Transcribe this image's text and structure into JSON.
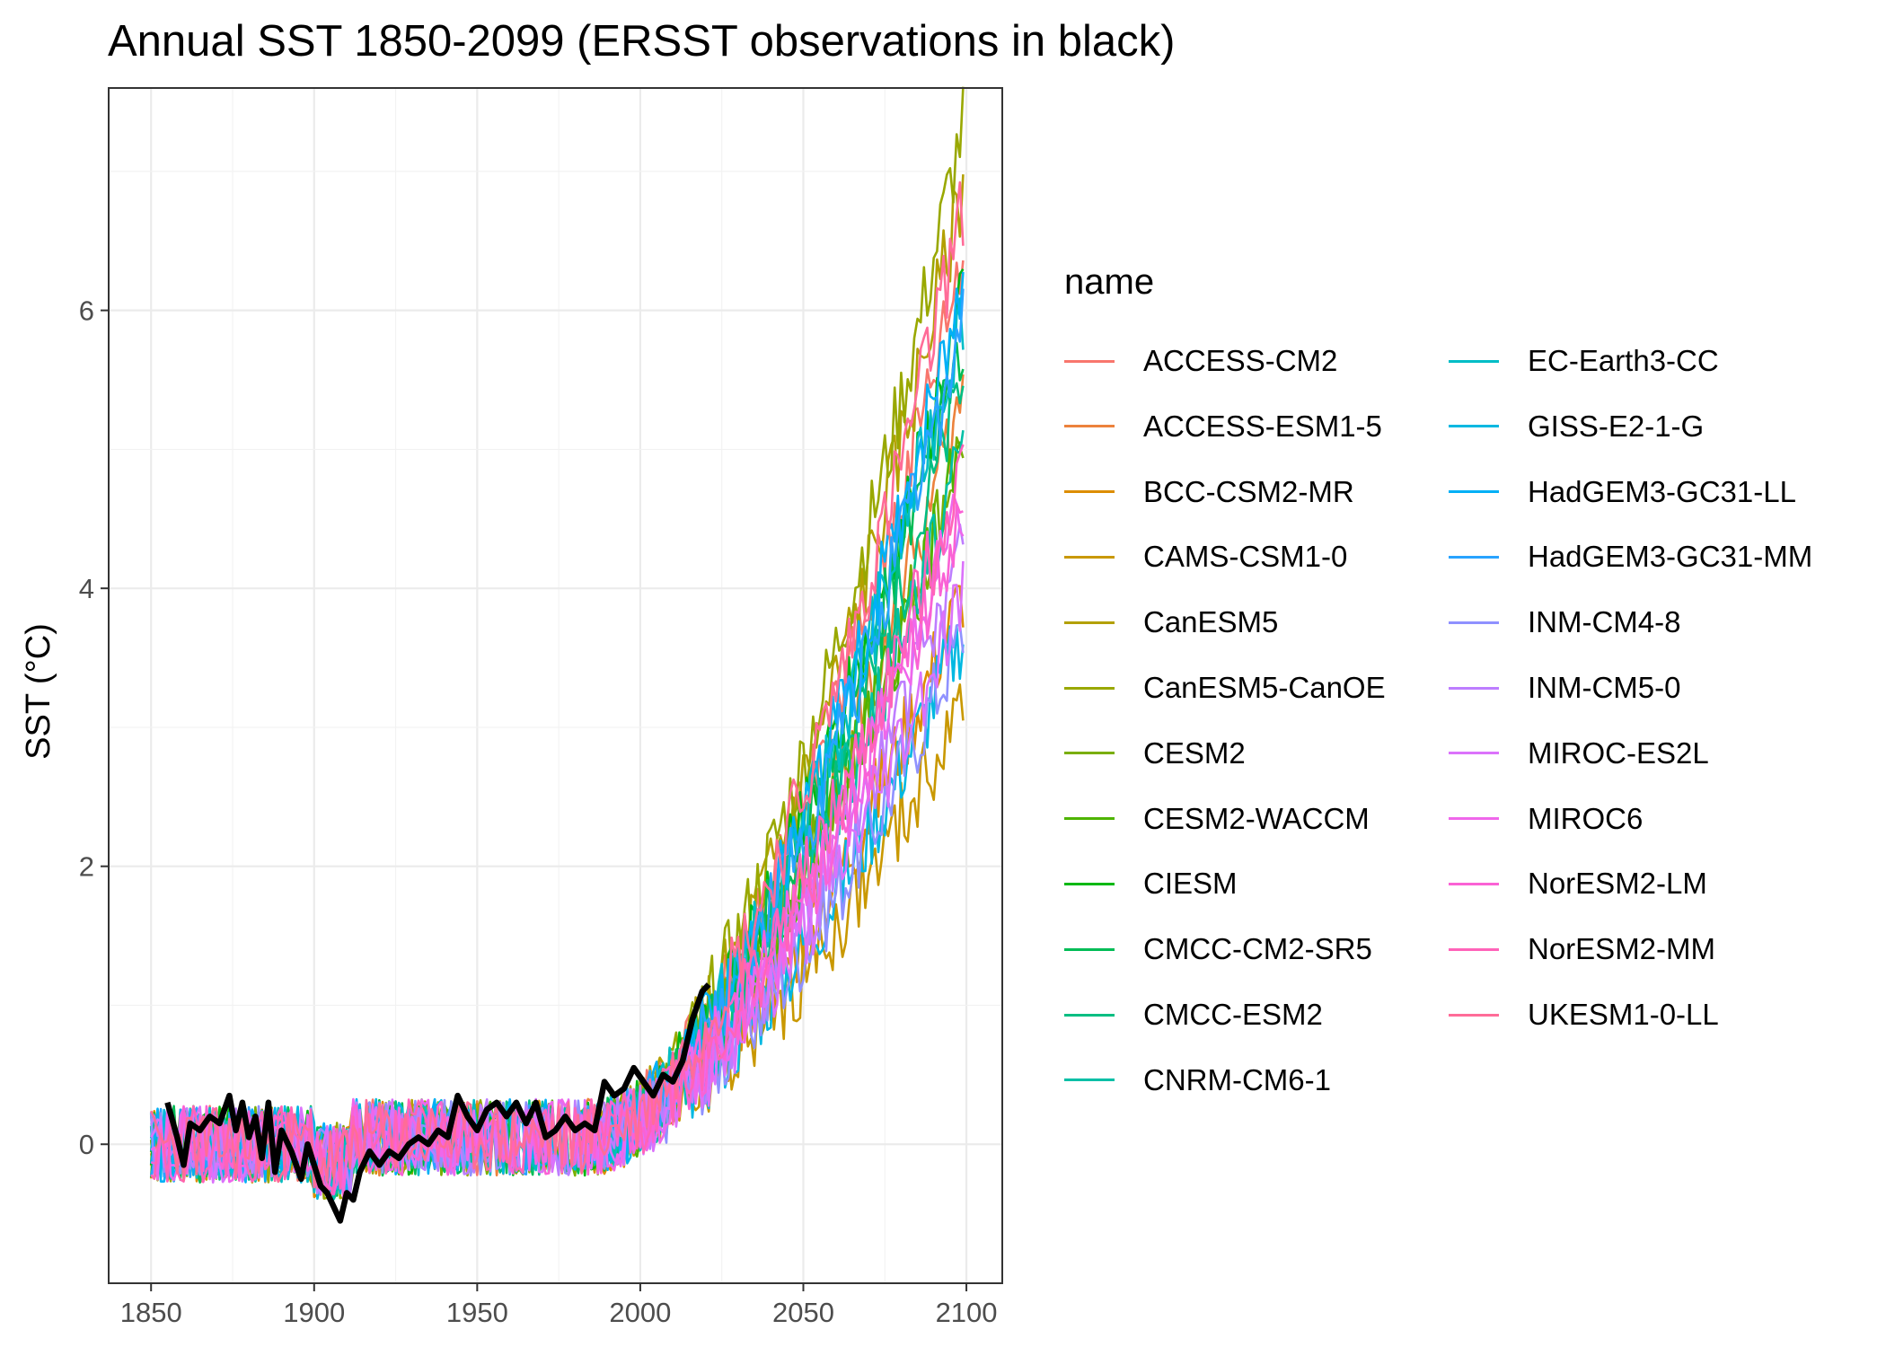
{
  "chart_data": {
    "type": "line",
    "title": "Annual SST 1850-2099 (ERSST observations in black)",
    "xlabel": "",
    "ylabel": "SST (°C)",
    "xlim": [
      1837,
      2111
    ],
    "ylim": [
      -1.0,
      7.6
    ],
    "x_ticks": [
      1850,
      1900,
      1950,
      2000,
      2050,
      2100
    ],
    "y_ticks": [
      0,
      2,
      4,
      6
    ],
    "grid": true,
    "legend_title": "name",
    "legend_position": "right",
    "observations": {
      "name": "ERSST",
      "color": "#000000",
      "x": [
        1855,
        1858,
        1860,
        1862,
        1865,
        1868,
        1871,
        1874,
        1876,
        1878,
        1880,
        1882,
        1884,
        1886,
        1888,
        1890,
        1893,
        1896,
        1898,
        1900,
        1902,
        1904,
        1906,
        1908,
        1910,
        1912,
        1914,
        1917,
        1920,
        1923,
        1926,
        1929,
        1932,
        1935,
        1938,
        1941,
        1944,
        1947,
        1950,
        1953,
        1956,
        1959,
        1962,
        1965,
        1968,
        1971,
        1974,
        1977,
        1980,
        1983,
        1986,
        1989,
        1992,
        1995,
        1998,
        2001,
        2004,
        2007,
        2010,
        2013,
        2016,
        2019,
        2021
      ],
      "y": [
        0.3,
        0.05,
        -0.15,
        0.15,
        0.1,
        0.2,
        0.15,
        0.35,
        0.1,
        0.3,
        0.05,
        0.2,
        -0.1,
        0.3,
        -0.2,
        0.1,
        -0.05,
        -0.25,
        0.0,
        -0.15,
        -0.3,
        -0.35,
        -0.45,
        -0.55,
        -0.35,
        -0.4,
        -0.2,
        -0.05,
        -0.15,
        -0.05,
        -0.1,
        0.0,
        0.05,
        0.0,
        0.1,
        0.05,
        0.35,
        0.2,
        0.1,
        0.25,
        0.3,
        0.2,
        0.3,
        0.15,
        0.3,
        0.05,
        0.1,
        0.2,
        0.1,
        0.15,
        0.1,
        0.45,
        0.35,
        0.4,
        0.55,
        0.45,
        0.35,
        0.5,
        0.45,
        0.6,
        0.9,
        1.1,
        1.15
      ]
    },
    "series": [
      {
        "name": "ACCESS-CM2",
        "color": "#F8766D",
        "end": 6.4
      },
      {
        "name": "ACCESS-ESM1-5",
        "color": "#EC823C",
        "end": 5.4
      },
      {
        "name": "BCC-CSM2-MR",
        "color": "#DC8D00",
        "end": 4.0
      },
      {
        "name": "CAMS-CSM1-0",
        "color": "#C99800",
        "end": 3.15
      },
      {
        "name": "CanESM5",
        "color": "#B3A000",
        "end": 6.9
      },
      {
        "name": "CanESM5-CanOE",
        "color": "#99A800",
        "end": 7.35
      },
      {
        "name": "CESM2",
        "color": "#7AAE00",
        "end": 5.1
      },
      {
        "name": "CESM2-WACCM",
        "color": "#4EB400",
        "end": 5.0
      },
      {
        "name": "CIESM",
        "color": "#00B813",
        "end": 6.1
      },
      {
        "name": "CMCC-CM2-SR5",
        "color": "#00BC56",
        "end": 5.8
      },
      {
        "name": "CMCC-ESM2",
        "color": "#00BE82",
        "end": 5.5
      },
      {
        "name": "CNRM-CM6-1",
        "color": "#00BFA6",
        "end": 5.0
      },
      {
        "name": "EC-Earth3-CC",
        "color": "#00BDC6",
        "end": 6.0
      },
      {
        "name": "GISS-E2-1-G",
        "color": "#00B8E1",
        "end": 3.7
      },
      {
        "name": "HadGEM3-GC31-LL",
        "color": "#00B0F6",
        "end": 6.2
      },
      {
        "name": "HadGEM3-GC31-MM",
        "color": "#29A3FF",
        "end": 5.9
      },
      {
        "name": "INM-CM4-8",
        "color": "#8F91FF",
        "end": 3.7
      },
      {
        "name": "INM-CM5-0",
        "color": "#BD7DFF",
        "end": 4.3
      },
      {
        "name": "MIROC-ES2L",
        "color": "#DB72FB",
        "end": 4.0
      },
      {
        "name": "MIROC6",
        "color": "#EF67EB",
        "end": 4.6
      },
      {
        "name": "NorESM2-LM",
        "color": "#FA62D5",
        "end": 4.6
      },
      {
        "name": "NorESM2-MM",
        "color": "#FF63B9",
        "end": 4.9
      },
      {
        "name": "UKESM1-0-LL",
        "color": "#FF6C98",
        "end": 6.75
      }
    ]
  }
}
